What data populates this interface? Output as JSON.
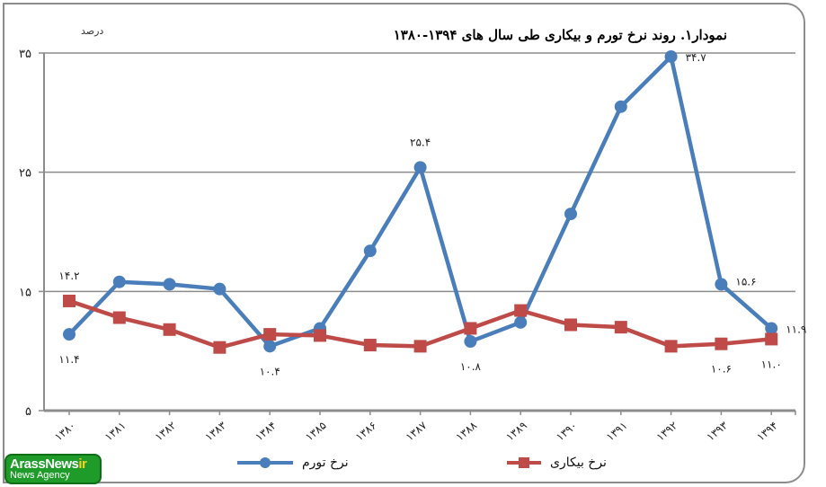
{
  "chart_data": {
    "type": "line",
    "title": "نمودار۱. روند نرخ تورم و بیکاری طی سال های ۱۳۹۴-۱۳۸۰",
    "ylabel": "درصد",
    "xlabel": "",
    "ylim": [
      5,
      35
    ],
    "yticks": [
      5,
      15,
      25,
      35
    ],
    "ytick_labels": [
      "۵",
      "۱۵",
      "۲۵",
      "۳۵"
    ],
    "grid": true,
    "legend_position": "bottom",
    "categories": [
      "۱۳۸۰",
      "۱۳۸۱",
      "۱۳۸۲",
      "۱۳۸۳",
      "۱۳۸۴",
      "۱۳۸۵",
      "۱۳۸۶",
      "۱۳۸۷",
      "۱۳۸۸",
      "۱۳۸۹",
      "۱۳۹۰",
      "۱۳۹۱",
      "۱۳۹۲",
      "۱۳۹۳",
      "۱۳۹۴"
    ],
    "x": [
      1380,
      1381,
      1382,
      1383,
      1384,
      1385,
      1386,
      1387,
      1388,
      1389,
      1390,
      1391,
      1392,
      1393,
      1394
    ],
    "series": [
      {
        "name": "نرخ تورم",
        "color": "#4a7ebb",
        "marker": "circle",
        "values": [
          11.4,
          15.8,
          15.6,
          15.2,
          10.4,
          11.9,
          18.4,
          25.4,
          10.8,
          12.4,
          21.5,
          30.5,
          34.7,
          15.6,
          11.9
        ]
      },
      {
        "name": "نرخ بیکاری",
        "color": "#be4b48",
        "marker": "square",
        "values": [
          14.2,
          12.8,
          11.8,
          10.3,
          11.4,
          11.3,
          10.5,
          10.4,
          11.9,
          13.4,
          12.2,
          12.0,
          10.4,
          10.6,
          11.0
        ]
      }
    ],
    "annotations": [
      {
        "series": 0,
        "index": 0,
        "text": "۱۱.۴",
        "pos": "below"
      },
      {
        "series": 1,
        "index": 0,
        "text": "۱۴.۲",
        "pos": "above"
      },
      {
        "series": 0,
        "index": 4,
        "text": "۱۰.۴",
        "pos": "below"
      },
      {
        "series": 0,
        "index": 7,
        "text": "۲۵.۴",
        "pos": "above"
      },
      {
        "series": 0,
        "index": 8,
        "text": "۱۰.۸",
        "pos": "below"
      },
      {
        "series": 0,
        "index": 12,
        "text": "۳۴.۷",
        "pos": "right"
      },
      {
        "series": 0,
        "index": 13,
        "text": "۱۵.۶",
        "pos": "right"
      },
      {
        "series": 1,
        "index": 13,
        "text": "۱۰.۶",
        "pos": "below"
      },
      {
        "series": 0,
        "index": 14,
        "text": "۱۱.۹",
        "pos": "right"
      },
      {
        "series": 1,
        "index": 14,
        "text": "۱۱.۰",
        "pos": "below"
      }
    ]
  },
  "header": {
    "title": "نمودار۱. روند نرخ تورم و بیکاری طی سال های ۱۳۹۴-۱۳۸۰",
    "unit": "درصد"
  },
  "legend": {
    "inflation": "نرخ تورم",
    "unemployment": "نرخ بیکاری"
  },
  "logo": {
    "line1": "ArassNews",
    "line1_suffix": "ir",
    "line2": "News Agency"
  },
  "colors": {
    "inflation": "#4a7ebb",
    "unemployment": "#be4b48",
    "grid": "#8c8c8c",
    "logo_green": "#1f9b2a"
  }
}
